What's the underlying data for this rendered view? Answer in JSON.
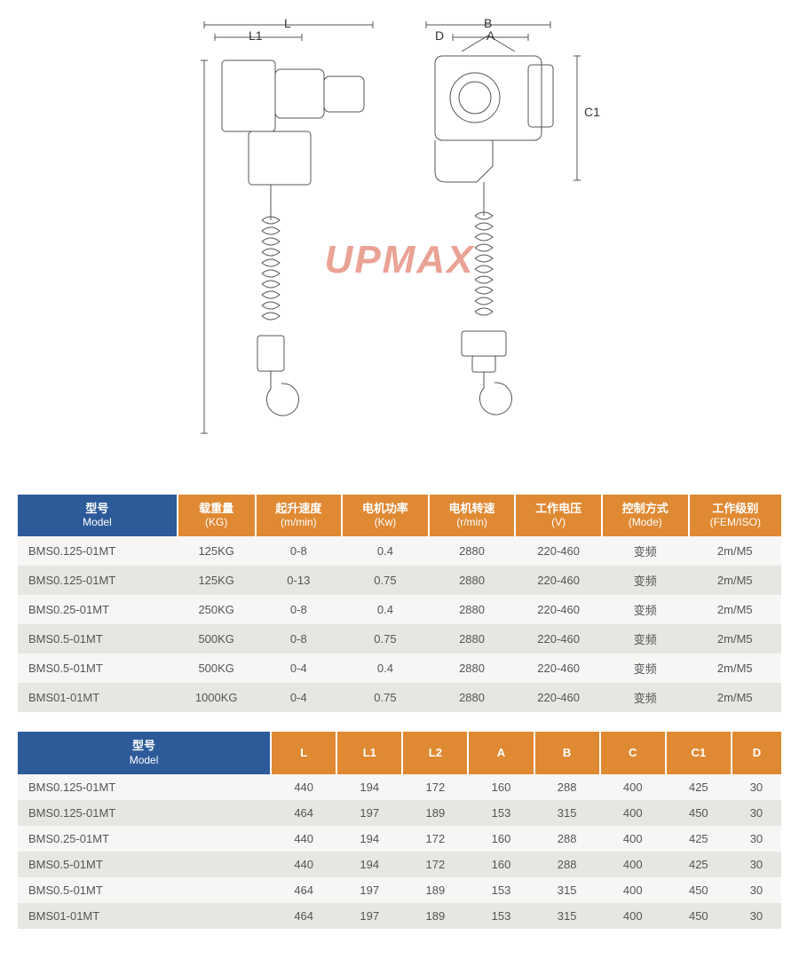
{
  "watermark": "UPMAX",
  "diagram_labels": {
    "L": "L",
    "L1": "L1",
    "B": "B",
    "A": "A",
    "D": "D",
    "C1": "C1"
  },
  "colors": {
    "header_blue": "#2d5b9a",
    "header_orange": "#e08933",
    "row_odd": "#f7f6f4",
    "row_even": "#e7e6e3",
    "watermark": "#e8998a"
  },
  "table1": {
    "headers": [
      {
        "zh": "型号",
        "en": "Model",
        "blue": true
      },
      {
        "zh": "载重量",
        "en": "(KG)"
      },
      {
        "zh": "起升速度",
        "en": "(m/min)"
      },
      {
        "zh": "电机功率",
        "en": "(Kw)"
      },
      {
        "zh": "电机转速",
        "en": "(r/min)"
      },
      {
        "zh": "工作电压",
        "en": "(V)"
      },
      {
        "zh": "控制方式",
        "en": "(Mode)"
      },
      {
        "zh": "工作级别",
        "en": "(FEM/ISO)"
      }
    ],
    "rows": [
      [
        "BMS0.125-01MT",
        "125KG",
        "0-8",
        "0.4",
        "2880",
        "220-460",
        "变频",
        "2m/M5"
      ],
      [
        "BMS0.125-01MT",
        "125KG",
        "0-13",
        "0.75",
        "2880",
        "220-460",
        "变频",
        "2m/M5"
      ],
      [
        "BMS0.25-01MT",
        "250KG",
        "0-8",
        "0.4",
        "2880",
        "220-460",
        "变频",
        "2m/M5"
      ],
      [
        "BMS0.5-01MT",
        "500KG",
        "0-8",
        "0.75",
        "2880",
        "220-460",
        "变频",
        "2m/M5"
      ],
      [
        "BMS0.5-01MT",
        "500KG",
        "0-4",
        "0.4",
        "2880",
        "220-460",
        "变频",
        "2m/M5"
      ],
      [
        "BMS01-01MT",
        "1000KG",
        "0-4",
        "0.75",
        "2880",
        "220-460",
        "变频",
        "2m/M5"
      ]
    ]
  },
  "table2": {
    "headers": [
      {
        "zh": "型号",
        "en": "Model",
        "blue": true
      },
      {
        "zh": "L"
      },
      {
        "zh": "L1"
      },
      {
        "zh": "L2"
      },
      {
        "zh": "A"
      },
      {
        "zh": "B"
      },
      {
        "zh": "C"
      },
      {
        "zh": "C1"
      },
      {
        "zh": "D"
      }
    ],
    "rows": [
      [
        "BMS0.125-01MT",
        "440",
        "194",
        "172",
        "160",
        "288",
        "400",
        "425",
        "30"
      ],
      [
        "BMS0.125-01MT",
        "464",
        "197",
        "189",
        "153",
        "315",
        "400",
        "450",
        "30"
      ],
      [
        "BMS0.25-01MT",
        "440",
        "194",
        "172",
        "160",
        "288",
        "400",
        "425",
        "30"
      ],
      [
        "BMS0.5-01MT",
        "440",
        "194",
        "172",
        "160",
        "288",
        "400",
        "425",
        "30"
      ],
      [
        "BMS0.5-01MT",
        "464",
        "197",
        "189",
        "153",
        "315",
        "400",
        "450",
        "30"
      ],
      [
        "BMS01-01MT",
        "464",
        "197",
        "189",
        "153",
        "315",
        "400",
        "450",
        "30"
      ]
    ]
  }
}
